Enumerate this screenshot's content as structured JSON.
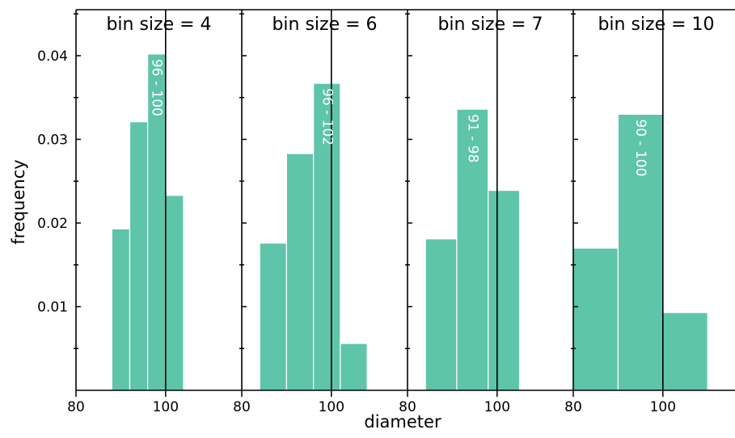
{
  "chart_data": {
    "type": "bar",
    "ylabel": "frequency",
    "xlabel": "diameter",
    "x_ticks": [
      "80",
      "100"
    ],
    "y_ticks": [
      "0.04",
      "0.03",
      "0.02",
      "0.01"
    ],
    "xlim": [
      80,
      117
    ],
    "ylim": [
      0,
      0.0455
    ],
    "reference_line_x": 100,
    "panels": [
      {
        "title": "bin size = 4",
        "bin_size": 4,
        "bins": [
          {
            "start": 88,
            "end": 92,
            "value": 0.0193
          },
          {
            "start": 92,
            "end": 96,
            "value": 0.0321
          },
          {
            "start": 96,
            "end": 100,
            "value": 0.0402,
            "label": "96 - 100"
          },
          {
            "start": 100,
            "end": 104,
            "value": 0.0233
          }
        ]
      },
      {
        "title": "bin size = 6",
        "bin_size": 6,
        "bins": [
          {
            "start": 84,
            "end": 90,
            "value": 0.0176
          },
          {
            "start": 90,
            "end": 96,
            "value": 0.0283
          },
          {
            "start": 96,
            "end": 102,
            "value": 0.0367,
            "label": "96 - 102"
          },
          {
            "start": 102,
            "end": 108,
            "value": 0.0056
          }
        ]
      },
      {
        "title": "bin size = 7",
        "bin_size": 7,
        "bins": [
          {
            "start": 84,
            "end": 91,
            "value": 0.0181
          },
          {
            "start": 91,
            "end": 98,
            "value": 0.0336,
            "label": "91 - 98"
          },
          {
            "start": 98,
            "end": 105,
            "value": 0.0239
          }
        ]
      },
      {
        "title": "bin size = 10",
        "bin_size": 10,
        "bins": [
          {
            "start": 80,
            "end": 90,
            "value": 0.017
          },
          {
            "start": 90,
            "end": 100,
            "value": 0.033,
            "label": "90 - 100"
          },
          {
            "start": 100,
            "end": 110,
            "value": 0.0093
          }
        ]
      }
    ]
  }
}
